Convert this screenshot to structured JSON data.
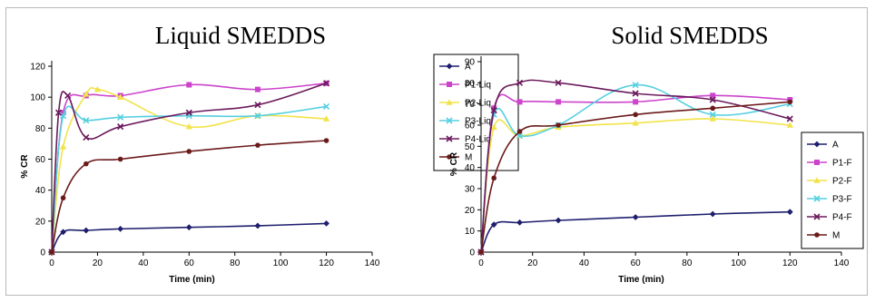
{
  "chart_data": [
    {
      "type": "line",
      "title": "Liquid SMEDDS",
      "xlabel": "Time (min)",
      "ylabel": "% CR",
      "xlim": [
        0,
        140
      ],
      "ylim": [
        0,
        120
      ],
      "xticks": [
        0,
        20,
        40,
        60,
        80,
        100,
        120,
        140
      ],
      "yticks": [
        0,
        20,
        40,
        60,
        80,
        100,
        120
      ],
      "grid": false,
      "legend_position": "right",
      "series": [
        {
          "name": "A",
          "color": "#1f1f6e",
          "marker": "diamond",
          "x": [
            0,
            5,
            15,
            30,
            60,
            90,
            120
          ],
          "y": [
            0,
            13,
            14,
            15,
            16,
            17,
            18.5
          ]
        },
        {
          "name": "P1-Liq",
          "color": "#cc44cc",
          "marker": "square",
          "x": [
            0,
            5,
            15,
            30,
            60,
            90,
            120
          ],
          "y": [
            0,
            90,
            101,
            101,
            108,
            105,
            109
          ]
        },
        {
          "name": "P2-Liq",
          "color": "#f2e34a",
          "marker": "triangle",
          "x": [
            0,
            5,
            15,
            20,
            30,
            60,
            90,
            120
          ],
          "y": [
            0,
            68,
            102,
            105,
            100,
            81,
            88,
            86
          ]
        },
        {
          "name": "P3-Liq",
          "color": "#55cfe0",
          "marker": "x",
          "x": [
            0,
            5,
            15,
            30,
            60,
            90,
            120
          ],
          "y": [
            0,
            88,
            85,
            87,
            88,
            88,
            94
          ]
        },
        {
          "name": "P4-Liq",
          "color": "#6b1a5c",
          "marker": "x",
          "x": [
            0,
            3,
            7,
            15,
            30,
            60,
            90,
            120
          ],
          "y": [
            0,
            90,
            101,
            74,
            81,
            90,
            95,
            109
          ]
        },
        {
          "name": "M",
          "color": "#6b1a1a",
          "marker": "circle",
          "x": [
            0,
            5,
            15,
            30,
            60,
            90,
            120
          ],
          "y": [
            0,
            35,
            57,
            60,
            65,
            69,
            72
          ]
        }
      ]
    },
    {
      "type": "line",
      "title": "Solid SMEDDS",
      "xlabel": "Time (min)",
      "ylabel": "% CR",
      "xlim": [
        0,
        140
      ],
      "ylim": [
        0,
        90
      ],
      "xticks": [
        0,
        20,
        40,
        60,
        80,
        100,
        120,
        140
      ],
      "yticks": [
        0,
        10,
        20,
        30,
        40,
        50,
        60,
        70,
        80,
        90
      ],
      "grid": false,
      "legend_position": "right",
      "series": [
        {
          "name": "A",
          "color": "#1f1f6e",
          "marker": "diamond",
          "x": [
            0,
            5,
            15,
            30,
            60,
            90,
            120
          ],
          "y": [
            0,
            13,
            14,
            15,
            16.5,
            18,
            19
          ]
        },
        {
          "name": "P1-F",
          "color": "#cc44cc",
          "marker": "square",
          "x": [
            0,
            5,
            15,
            30,
            60,
            90,
            120
          ],
          "y": [
            0,
            68,
            71,
            71,
            71,
            74,
            72
          ]
        },
        {
          "name": "P2-F",
          "color": "#f2e34a",
          "marker": "triangle",
          "x": [
            0,
            5,
            15,
            30,
            60,
            90,
            120
          ],
          "y": [
            0,
            59,
            55,
            59,
            61,
            63,
            60
          ]
        },
        {
          "name": "P3-F",
          "color": "#55cfe0",
          "marker": "x",
          "x": [
            0,
            5,
            15,
            30,
            60,
            90,
            120
          ],
          "y": [
            0,
            65,
            55,
            60,
            79,
            65,
            70
          ]
        },
        {
          "name": "P4-F",
          "color": "#6b1a5c",
          "marker": "x",
          "x": [
            0,
            5,
            15,
            30,
            60,
            90,
            120
          ],
          "y": [
            0,
            67,
            80,
            80,
            75,
            72,
            63
          ]
        },
        {
          "name": "M",
          "color": "#6b1a1a",
          "marker": "circle",
          "x": [
            0,
            5,
            15,
            30,
            60,
            90,
            120
          ],
          "y": [
            0,
            35,
            57,
            60,
            65,
            68,
            71
          ]
        }
      ]
    }
  ]
}
